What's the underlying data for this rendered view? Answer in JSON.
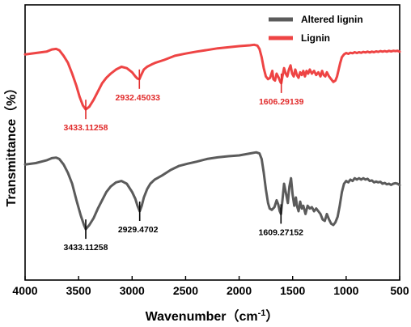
{
  "chart_data": {
    "type": "line",
    "xlabel": "Wavenumber（cm",
    "xlabel_sup": "-1",
    "xlabel_close": "）",
    "ylabel": "Transmittance（%）",
    "xlim": [
      4000,
      500
    ],
    "ylim": [
      0,
      100
    ],
    "x_ticks": [
      "4000",
      "3500",
      "3000",
      "2500",
      "2000",
      "1500",
      "1000",
      "500"
    ],
    "x_tick_values": [
      4000,
      3500,
      3000,
      2500,
      2000,
      1500,
      1000,
      500
    ],
    "legend_position": "top-right",
    "series": [
      {
        "name": "Altered lignin",
        "color": "#5b5b5b",
        "points": [
          [
            4000,
            42
          ],
          [
            3900,
            42.5
          ],
          [
            3800,
            43.5
          ],
          [
            3750,
            44.3
          ],
          [
            3710,
            44.5
          ],
          [
            3680,
            44
          ],
          [
            3640,
            42
          ],
          [
            3600,
            39
          ],
          [
            3560,
            35
          ],
          [
            3520,
            29
          ],
          [
            3480,
            23.5
          ],
          [
            3450,
            20
          ],
          [
            3433,
            18.5
          ],
          [
            3400,
            20
          ],
          [
            3360,
            22.5
          ],
          [
            3320,
            26
          ],
          [
            3280,
            29
          ],
          [
            3240,
            32
          ],
          [
            3200,
            34
          ],
          [
            3150,
            35.5
          ],
          [
            3100,
            36
          ],
          [
            3050,
            35
          ],
          [
            3000,
            32
          ],
          [
            2970,
            29.5
          ],
          [
            2950,
            27
          ],
          [
            2929,
            25
          ],
          [
            2910,
            27
          ],
          [
            2890,
            30
          ],
          [
            2860,
            33
          ],
          [
            2830,
            35
          ],
          [
            2790,
            36.5
          ],
          [
            2720,
            38
          ],
          [
            2640,
            40
          ],
          [
            2560,
            41.5
          ],
          [
            2480,
            42.3
          ],
          [
            2400,
            43
          ],
          [
            2300,
            44
          ],
          [
            2200,
            44.6
          ],
          [
            2100,
            45
          ],
          [
            2000,
            45.3
          ],
          [
            1900,
            46
          ],
          [
            1840,
            46.4
          ],
          [
            1810,
            46
          ],
          [
            1790,
            44
          ],
          [
            1770,
            39
          ],
          [
            1750,
            33
          ],
          [
            1730,
            28
          ],
          [
            1715,
            26
          ],
          [
            1695,
            25.5
          ],
          [
            1670,
            26.5
          ],
          [
            1650,
            29
          ],
          [
            1635,
            27.5
          ],
          [
            1620,
            25
          ],
          [
            1609,
            24
          ],
          [
            1595,
            29
          ],
          [
            1580,
            35
          ],
          [
            1560,
            31
          ],
          [
            1545,
            28
          ],
          [
            1530,
            34
          ],
          [
            1515,
            37
          ],
          [
            1500,
            31
          ],
          [
            1485,
            27
          ],
          [
            1470,
            30
          ],
          [
            1460,
            27
          ],
          [
            1445,
            25
          ],
          [
            1430,
            28.5
          ],
          [
            1415,
            26
          ],
          [
            1400,
            27
          ],
          [
            1380,
            24
          ],
          [
            1360,
            27
          ],
          [
            1340,
            26
          ],
          [
            1320,
            26.5
          ],
          [
            1300,
            25
          ],
          [
            1280,
            26
          ],
          [
            1260,
            25
          ],
          [
            1240,
            24
          ],
          [
            1220,
            22
          ],
          [
            1200,
            21.5
          ],
          [
            1180,
            24
          ],
          [
            1160,
            22
          ],
          [
            1140,
            20.5
          ],
          [
            1120,
            20
          ],
          [
            1100,
            21
          ],
          [
            1080,
            23
          ],
          [
            1060,
            27
          ],
          [
            1040,
            32
          ],
          [
            1020,
            35
          ],
          [
            1000,
            36
          ],
          [
            980,
            35.5
          ],
          [
            960,
            36.5
          ],
          [
            940,
            36
          ],
          [
            920,
            37
          ],
          [
            900,
            36.5
          ],
          [
            880,
            37
          ],
          [
            860,
            36.5
          ],
          [
            840,
            37
          ],
          [
            820,
            36.5
          ],
          [
            800,
            36.8
          ],
          [
            780,
            36
          ],
          [
            760,
            36.2
          ],
          [
            740,
            35.5
          ],
          [
            720,
            35.8
          ],
          [
            700,
            35.5
          ],
          [
            680,
            35.7
          ],
          [
            660,
            35
          ],
          [
            640,
            35.3
          ],
          [
            620,
            34.8
          ],
          [
            600,
            35
          ],
          [
            580,
            34.6
          ],
          [
            560,
            35
          ],
          [
            540,
            35.2
          ],
          [
            520,
            35
          ],
          [
            500,
            34.5
          ]
        ]
      },
      {
        "name": "Lignin",
        "color": "#ee4444",
        "points": [
          [
            4000,
            82
          ],
          [
            3900,
            82.5
          ],
          [
            3800,
            83
          ],
          [
            3750,
            83.8
          ],
          [
            3710,
            84
          ],
          [
            3680,
            83.5
          ],
          [
            3640,
            81.5
          ],
          [
            3600,
            79
          ],
          [
            3560,
            75
          ],
          [
            3520,
            70.5
          ],
          [
            3490,
            66.5
          ],
          [
            3460,
            63.5
          ],
          [
            3433,
            62
          ],
          [
            3400,
            63
          ],
          [
            3360,
            65.5
          ],
          [
            3320,
            68.5
          ],
          [
            3280,
            71.5
          ],
          [
            3240,
            73.5
          ],
          [
            3200,
            75
          ],
          [
            3150,
            76.5
          ],
          [
            3100,
            77.5
          ],
          [
            3050,
            77
          ],
          [
            3000,
            75.5
          ],
          [
            2970,
            74
          ],
          [
            2950,
            73.2
          ],
          [
            2932,
            73
          ],
          [
            2915,
            74.5
          ],
          [
            2890,
            76.5
          ],
          [
            2860,
            77.5
          ],
          [
            2820,
            78.3
          ],
          [
            2780,
            79
          ],
          [
            2700,
            80
          ],
          [
            2600,
            81.5
          ],
          [
            2500,
            82.3
          ],
          [
            2400,
            83
          ],
          [
            2300,
            83.6
          ],
          [
            2200,
            84.2
          ],
          [
            2100,
            84.6
          ],
          [
            2000,
            85
          ],
          [
            1900,
            85.3
          ],
          [
            1860,
            85.5
          ],
          [
            1830,
            85.2
          ],
          [
            1810,
            84
          ],
          [
            1790,
            81
          ],
          [
            1770,
            77
          ],
          [
            1750,
            74
          ],
          [
            1730,
            73
          ],
          [
            1710,
            73.5
          ],
          [
            1690,
            76
          ],
          [
            1680,
            73
          ],
          [
            1665,
            72.5
          ],
          [
            1650,
            75
          ],
          [
            1630,
            73.5
          ],
          [
            1615,
            72
          ],
          [
            1606,
            71.5
          ],
          [
            1595,
            74
          ],
          [
            1580,
            77
          ],
          [
            1565,
            75
          ],
          [
            1550,
            74
          ],
          [
            1535,
            76.5
          ],
          [
            1520,
            78
          ],
          [
            1505,
            75
          ],
          [
            1490,
            74
          ],
          [
            1475,
            76.5
          ],
          [
            1460,
            74.5
          ],
          [
            1445,
            73.5
          ],
          [
            1430,
            75.5
          ],
          [
            1415,
            74.5
          ],
          [
            1400,
            76
          ],
          [
            1385,
            74
          ],
          [
            1370,
            76
          ],
          [
            1355,
            75
          ],
          [
            1340,
            76.5
          ],
          [
            1320,
            75
          ],
          [
            1300,
            76
          ],
          [
            1280,
            74.5
          ],
          [
            1260,
            75.5
          ],
          [
            1240,
            74
          ],
          [
            1225,
            76
          ],
          [
            1210,
            74.5
          ],
          [
            1195,
            74
          ],
          [
            1180,
            75.5
          ],
          [
            1160,
            74
          ],
          [
            1140,
            73
          ],
          [
            1120,
            72
          ],
          [
            1100,
            72.5
          ],
          [
            1085,
            74
          ],
          [
            1070,
            76.5
          ],
          [
            1055,
            79
          ],
          [
            1040,
            81
          ],
          [
            1020,
            82
          ],
          [
            1000,
            82.5
          ],
          [
            980,
            82.2
          ],
          [
            960,
            82.6
          ],
          [
            940,
            82.4
          ],
          [
            920,
            82.8
          ],
          [
            900,
            82.5
          ],
          [
            880,
            82.8
          ],
          [
            860,
            82.6
          ],
          [
            840,
            82.9
          ],
          [
            820,
            82.7
          ],
          [
            800,
            83
          ],
          [
            780,
            82.7
          ],
          [
            760,
            83
          ],
          [
            740,
            82.8
          ],
          [
            720,
            83.1
          ],
          [
            700,
            82.9
          ],
          [
            680,
            83.2
          ],
          [
            660,
            83
          ],
          [
            640,
            83.2
          ],
          [
            620,
            83
          ],
          [
            600,
            83.3
          ],
          [
            580,
            83.1
          ],
          [
            560,
            83.3
          ],
          [
            540,
            83.2
          ],
          [
            520,
            83.3
          ],
          [
            500,
            83
          ]
        ]
      }
    ],
    "annotations": [
      {
        "label": "3433.11258",
        "x": 3433,
        "y": 62,
        "series": "Lignin",
        "color": "#e12b2b"
      },
      {
        "label": "2932.45033",
        "x": 2932,
        "y": 73,
        "series": "Lignin",
        "color": "#e12b2b"
      },
      {
        "label": "1606.29139",
        "x": 1606,
        "y": 71.5,
        "series": "Lignin",
        "color": "#e12b2b"
      },
      {
        "label": "3433.11258",
        "x": 3433,
        "y": 18.5,
        "series": "Altered lignin",
        "color": "#000000"
      },
      {
        "label": "2929.4702",
        "x": 2929,
        "y": 25,
        "series": "Altered lignin",
        "color": "#000000"
      },
      {
        "label": "1609.27152",
        "x": 1609,
        "y": 24,
        "series": "Altered lignin",
        "color": "#000000"
      }
    ]
  }
}
